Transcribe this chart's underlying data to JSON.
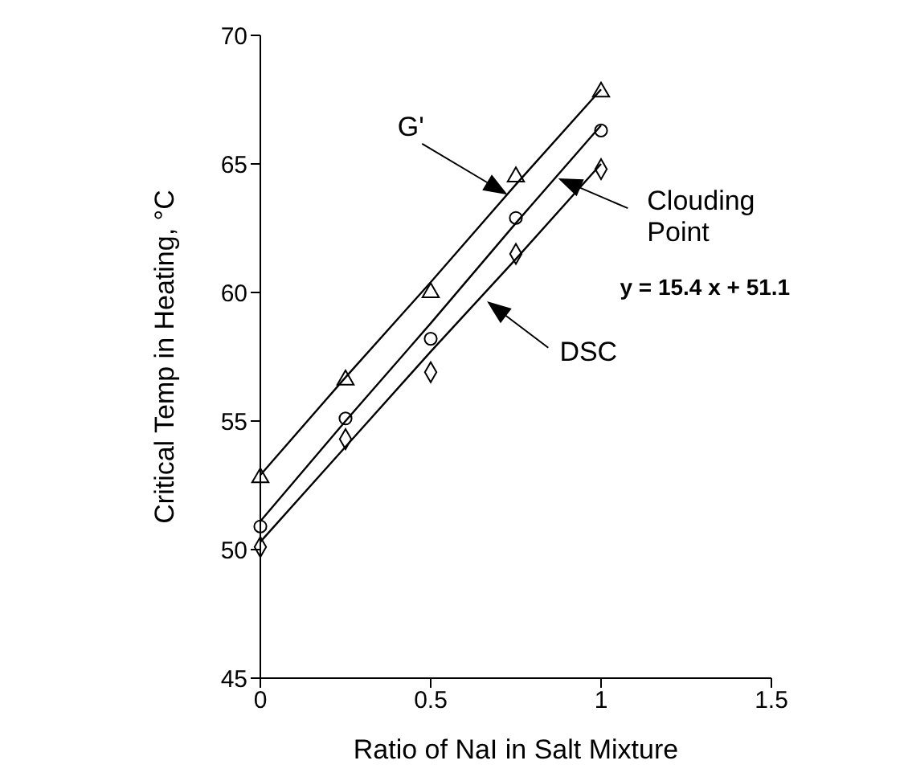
{
  "chart_data": {
    "type": "scatter",
    "xlabel": "Ratio of NaI in Salt Mixture",
    "ylabel": "Critical Temp in Heating, °C",
    "xlim": [
      0,
      1.5
    ],
    "xticks": [
      0,
      0.5,
      1,
      1.5
    ],
    "ylim": [
      45,
      70
    ],
    "yticks": [
      45,
      50,
      55,
      60,
      65,
      70
    ],
    "grid": false,
    "legend": false,
    "x": [
      0,
      0.25,
      0.5,
      0.75,
      1
    ],
    "series": [
      {
        "marker": "triangle",
        "color": "#000000",
        "values": [
          52.8,
          56.6,
          60.0,
          64.5,
          67.8
        ]
      },
      {
        "marker": "circle",
        "color": "#000000",
        "values": [
          50.9,
          55.1,
          58.2,
          62.9,
          66.3
        ]
      },
      {
        "marker": "diamond",
        "color": "#000000",
        "values": [
          50.1,
          54.3,
          56.9,
          61.5,
          64.8
        ]
      },
      {
        "type": "line",
        "color": "#000000",
        "values": [
          52.9,
          56.7,
          60.4,
          64.2,
          67.9
        ]
      },
      {
        "type": "line",
        "color": "#000000",
        "values": [
          51.1,
          55.0,
          58.8,
          62.7,
          66.5
        ]
      },
      {
        "type": "line",
        "color": "#000000",
        "values": [
          50.3,
          54.0,
          57.7,
          61.3,
          65.0
        ]
      }
    ],
    "annotations": [
      "G'",
      "Clouding Point",
      "DSC",
      "y = 15.4 x + 51.1"
    ]
  }
}
